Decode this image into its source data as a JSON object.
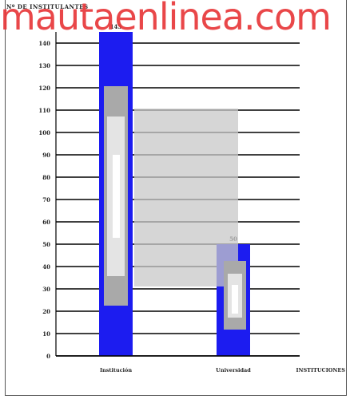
{
  "watermark": "mautaenlinea.com",
  "chart_data": {
    "type": "bar",
    "ylabel": "Nº DE INSTITULANTES",
    "xlabel": "INSTITUCIONES",
    "ylim": [
      0,
      145
    ],
    "yticks": [
      0,
      10,
      20,
      30,
      40,
      50,
      60,
      70,
      80,
      90,
      100,
      110,
      120,
      130,
      140
    ],
    "categories": [
      "Institución",
      "Universidad"
    ],
    "values": [
      145,
      50
    ],
    "value_labels": [
      "145",
      "50"
    ],
    "colors": {
      "bar": "#1c1cf0",
      "band_outer": "#c8c8c8",
      "band_mid": "#a9a9a9",
      "band_inner": "#e4e4e4",
      "band_core": "#ffffff",
      "gridline": "#000000"
    }
  }
}
